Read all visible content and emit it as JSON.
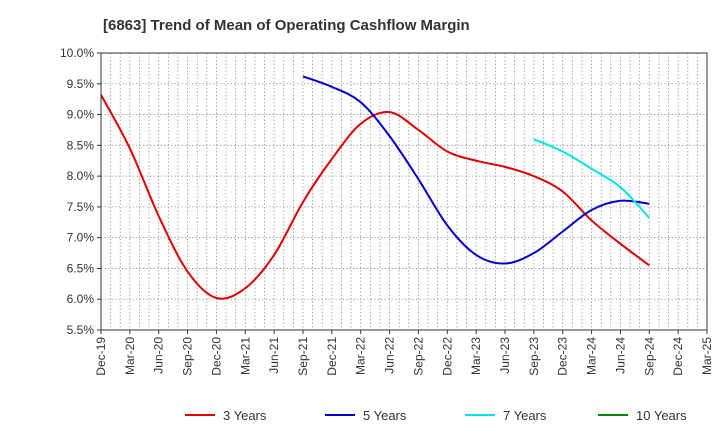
{
  "chart_data": {
    "type": "line",
    "title": "[6863]  Trend of Mean of Operating Cashflow Margin",
    "xlabel": "",
    "ylabel": "",
    "ylim": [
      5.5,
      10.0
    ],
    "y_ticks": [
      "5.5%",
      "6.0%",
      "6.5%",
      "7.0%",
      "7.5%",
      "8.0%",
      "8.5%",
      "9.0%",
      "9.5%",
      "10.0%"
    ],
    "x_ticks": [
      "Dec-19",
      "Mar-20",
      "Jun-20",
      "Sep-20",
      "Dec-20",
      "Mar-21",
      "Jun-21",
      "Sep-21",
      "Dec-21",
      "Mar-22",
      "Jun-22",
      "Sep-22",
      "Dec-22",
      "Mar-23",
      "Jun-23",
      "Sep-23",
      "Dec-23",
      "Mar-24",
      "Jun-24",
      "Sep-24",
      "Dec-24",
      "Mar-25"
    ],
    "grid": true,
    "legend_position": "bottom",
    "series": [
      {
        "name": "3 Years",
        "color": "#dd0000",
        "points": [
          [
            "Dec-19",
            9.32
          ],
          [
            "Mar-20",
            8.45
          ],
          [
            "Jun-20",
            7.35
          ],
          [
            "Sep-20",
            6.45
          ],
          [
            "Dec-20",
            6.02
          ],
          [
            "Mar-21",
            6.18
          ],
          [
            "Jun-21",
            6.72
          ],
          [
            "Sep-21",
            7.58
          ],
          [
            "Dec-21",
            8.28
          ],
          [
            "Mar-22",
            8.85
          ],
          [
            "Jun-22",
            9.04
          ],
          [
            "Sep-22",
            8.75
          ],
          [
            "Dec-22",
            8.4
          ],
          [
            "Mar-23",
            8.25
          ],
          [
            "Jun-23",
            8.15
          ],
          [
            "Sep-23",
            8.0
          ],
          [
            "Dec-23",
            7.75
          ],
          [
            "Mar-24",
            7.28
          ],
          [
            "Jun-24",
            6.9
          ],
          [
            "Sep-24",
            6.55
          ]
        ]
      },
      {
        "name": "5 Years",
        "color": "#0000cc",
        "points": [
          [
            "Sep-21",
            9.62
          ],
          [
            "Dec-21",
            9.45
          ],
          [
            "Mar-22",
            9.2
          ],
          [
            "Jun-22",
            8.65
          ],
          [
            "Sep-22",
            7.95
          ],
          [
            "Dec-22",
            7.2
          ],
          [
            "Mar-23",
            6.72
          ],
          [
            "Jun-23",
            6.58
          ],
          [
            "Sep-23",
            6.75
          ],
          [
            "Dec-23",
            7.1
          ],
          [
            "Mar-24",
            7.45
          ],
          [
            "Jun-24",
            7.6
          ],
          [
            "Sep-24",
            7.55
          ]
        ]
      },
      {
        "name": "7 Years",
        "color": "#00e5e5",
        "points": [
          [
            "Sep-23",
            8.6
          ],
          [
            "Dec-23",
            8.4
          ],
          [
            "Mar-24",
            8.12
          ],
          [
            "Jun-24",
            7.82
          ],
          [
            "Sep-24",
            7.32
          ]
        ]
      },
      {
        "name": "10 Years",
        "color": "#008800",
        "points": []
      }
    ]
  }
}
